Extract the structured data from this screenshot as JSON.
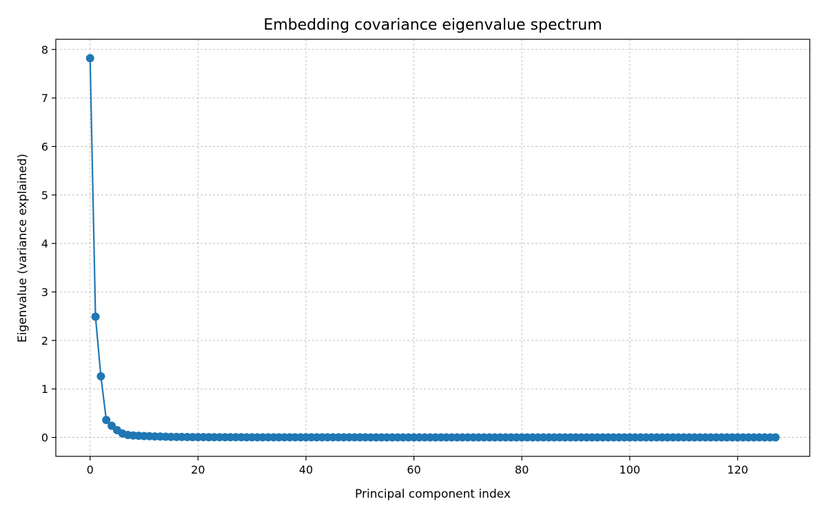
{
  "chart_data": {
    "type": "line",
    "title": "Embedding covariance eigenvalue spectrum",
    "xlabel": "Principal component index",
    "ylabel": "Eigenvalue (variance explained)",
    "xlim": [
      -6.35,
      133.35
    ],
    "ylim": [
      -0.39,
      8.21
    ],
    "xticks": [
      0,
      20,
      40,
      60,
      80,
      100,
      120
    ],
    "yticks": [
      0,
      1,
      2,
      3,
      4,
      5,
      6,
      7,
      8
    ],
    "grid": true,
    "markers": true,
    "color": "#1f77b4",
    "series": [
      {
        "x": [
          0,
          1,
          2,
          3,
          4,
          5,
          6,
          7,
          8,
          9,
          10,
          11,
          12,
          13,
          14,
          15,
          16,
          17,
          18,
          19,
          20,
          21,
          22,
          23,
          24,
          25,
          26,
          27,
          28,
          29,
          30,
          31,
          32,
          33,
          34,
          35,
          36,
          37,
          38,
          39,
          40,
          41,
          42,
          43,
          44,
          45,
          46,
          47,
          48,
          49,
          50,
          51,
          52,
          53,
          54,
          55,
          56,
          57,
          58,
          59,
          60,
          61,
          62,
          63,
          64,
          65,
          66,
          67,
          68,
          69,
          70,
          71,
          72,
          73,
          74,
          75,
          76,
          77,
          78,
          79,
          80,
          81,
          82,
          83,
          84,
          85,
          86,
          87,
          88,
          89,
          90,
          91,
          92,
          93,
          94,
          95,
          96,
          97,
          98,
          99,
          100,
          101,
          102,
          103,
          104,
          105,
          106,
          107,
          108,
          109,
          110,
          111,
          112,
          113,
          114,
          115,
          116,
          117,
          118,
          119,
          120,
          121,
          122,
          123,
          124,
          125,
          126,
          127
        ],
        "values": [
          7.82,
          2.49,
          1.26,
          0.36,
          0.24,
          0.15,
          0.08,
          0.05,
          0.04,
          0.035,
          0.03,
          0.025,
          0.02,
          0.018,
          0.015,
          0.012,
          0.01,
          0.009,
          0.008,
          0.007,
          0.006,
          0.006,
          0.005,
          0.005,
          0.005,
          0.004,
          0.004,
          0.004,
          0.004,
          0.003,
          0.003,
          0.003,
          0.003,
          0.003,
          0.003,
          0.003,
          0.002,
          0.002,
          0.002,
          0.002,
          0.002,
          0.002,
          0.002,
          0.002,
          0.002,
          0.002,
          0.002,
          0.002,
          0.002,
          0.002,
          0.002,
          0.002,
          0.001,
          0.001,
          0.001,
          0.001,
          0.001,
          0.001,
          0.001,
          0.001,
          0.001,
          0.001,
          0.001,
          0.001,
          0.001,
          0.001,
          0.001,
          0.001,
          0.001,
          0.001,
          0.001,
          0.001,
          0.001,
          0.001,
          0.001,
          0.001,
          0.001,
          0.001,
          0.001,
          0.001,
          0.001,
          0.001,
          0.001,
          0.001,
          0.001,
          0.001,
          0.001,
          0.001,
          0.001,
          0.001,
          0.001,
          0.001,
          0.001,
          0.001,
          0.001,
          0.001,
          0.001,
          0.001,
          0.001,
          0.001,
          0.001,
          0.001,
          0.001,
          0.001,
          0.001,
          0.001,
          0.001,
          0.001,
          0.001,
          0.001,
          0.001,
          0.001,
          0.001,
          0.001,
          0.001,
          0.001,
          0.001,
          0.001,
          0.001,
          0.001,
          0.001,
          0.001,
          0.001,
          0.001,
          0.001,
          0.001,
          0.001,
          0.001
        ]
      }
    ]
  }
}
